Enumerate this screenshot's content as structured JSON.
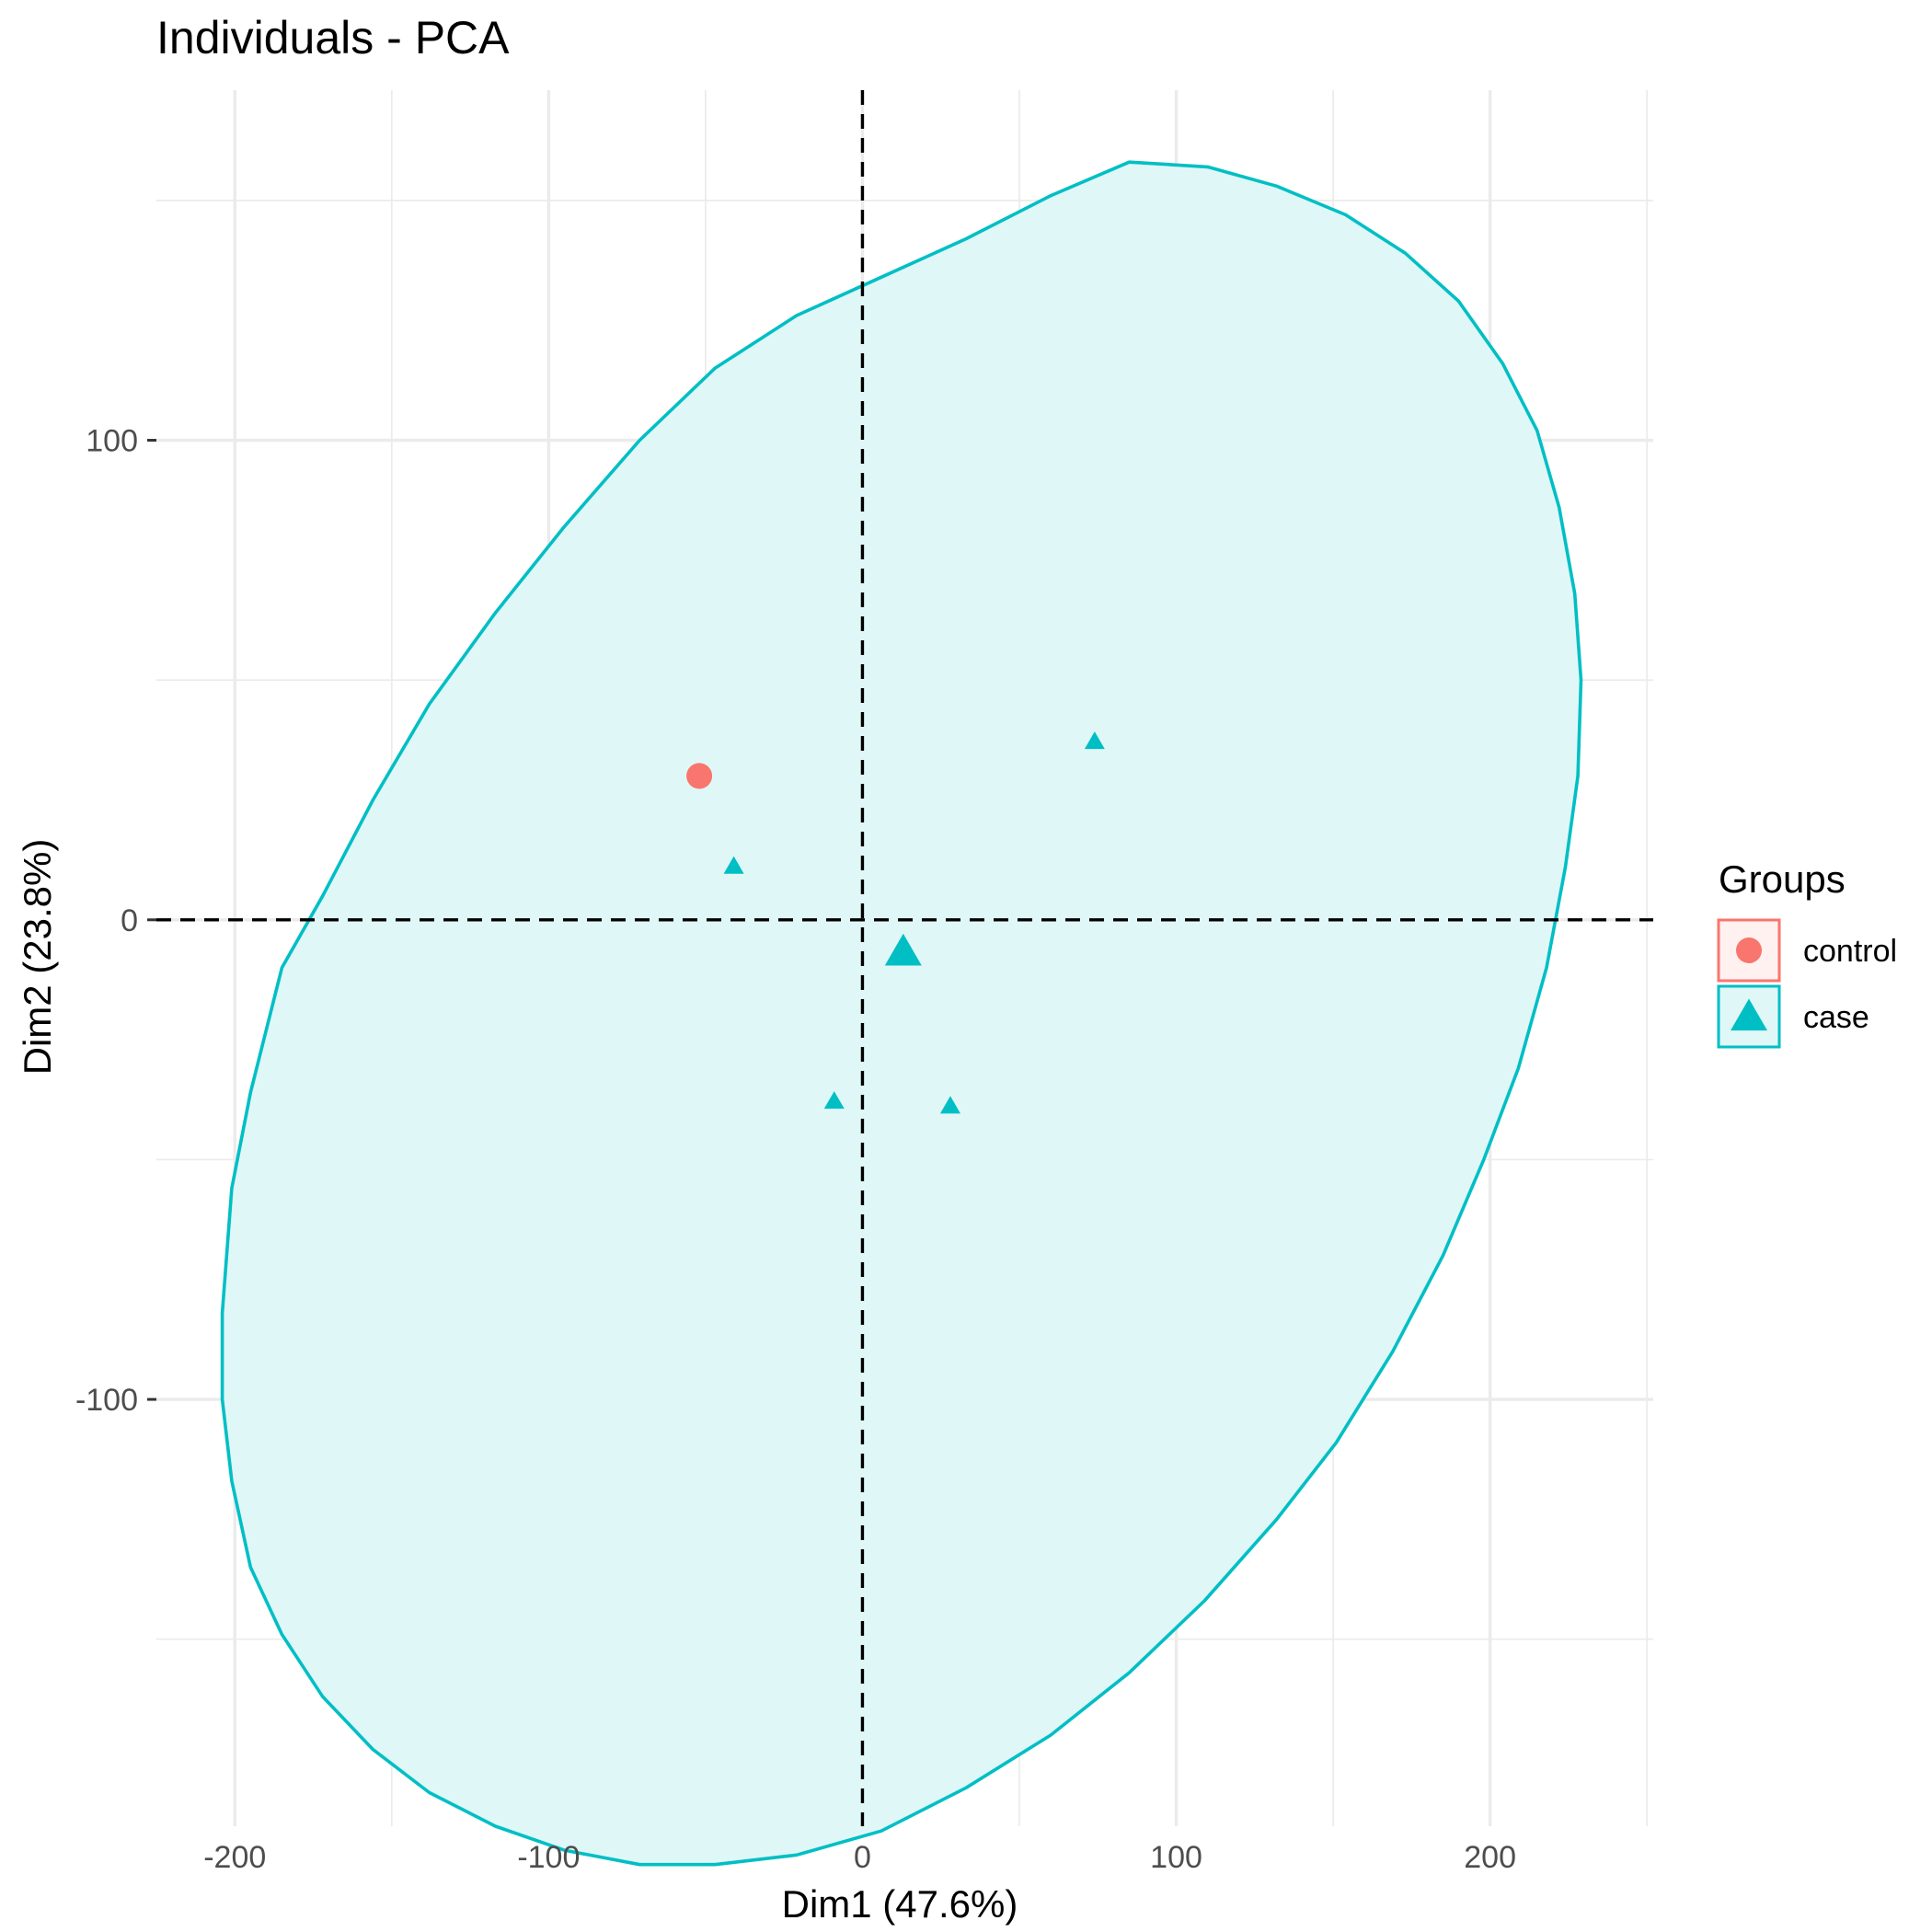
{
  "chart_data": {
    "type": "scatter",
    "title": "Individuals - PCA",
    "xlabel": "Dim1 (47.6%)",
    "ylabel": "Dim2 (23.8%)",
    "xlim": [
      -225,
      252
    ],
    "ylim": [
      -189,
      173
    ],
    "x_ticks": [
      -200,
      -100,
      0,
      100,
      200
    ],
    "y_ticks": [
      -100,
      0,
      100
    ],
    "x_tick_labels": [
      "-200",
      "-100",
      "0",
      "100",
      "200"
    ],
    "y_tick_labels": [
      "-100",
      "0",
      "100"
    ],
    "grid": true,
    "reference_lines": {
      "x": 0,
      "y": 0,
      "style": "dashed"
    },
    "legend": {
      "title": "Groups",
      "position": "right",
      "entries": [
        {
          "name": "control",
          "shape": "circle",
          "color": "#F8766D"
        },
        {
          "name": "case",
          "shape": "triangle",
          "color": "#00BFC4"
        }
      ]
    },
    "series": [
      {
        "name": "control",
        "color": "#F8766D",
        "shape": "circle",
        "points": [
          {
            "x": -52,
            "y": 30
          }
        ],
        "centroid": {
          "x": -52,
          "y": 30
        }
      },
      {
        "name": "case",
        "color": "#00BFC4",
        "shape": "triangle",
        "points": [
          {
            "x": 74,
            "y": 37
          },
          {
            "x": -41,
            "y": 11
          },
          {
            "x": -9,
            "y": -38
          },
          {
            "x": 28,
            "y": -39
          }
        ],
        "centroid": {
          "x": 13,
          "y": -7
        },
        "ellipse": {
          "fill": "#E0F7F8",
          "stroke": "#00BFC4",
          "points": [
            [
              85,
              158
            ],
            [
              110,
              157
            ],
            [
              132,
              153
            ],
            [
              154,
              147
            ],
            [
              173,
              139
            ],
            [
              190,
              129
            ],
            [
              204,
              116
            ],
            [
              215,
              102
            ],
            [
              222,
              86
            ],
            [
              227,
              68
            ],
            [
              229,
              50
            ],
            [
              228,
              30
            ],
            [
              224,
              11
            ],
            [
              218,
              -10
            ],
            [
              209,
              -31
            ],
            [
              198,
              -50
            ],
            [
              185,
              -70
            ],
            [
              169,
              -90
            ],
            [
              151,
              -109
            ],
            [
              132,
              -125
            ],
            [
              109,
              -142
            ],
            [
              85,
              -157
            ],
            [
              60,
              -170
            ],
            [
              33,
              -181
            ],
            [
              6,
              -190
            ],
            [
              -21,
              -195
            ],
            [
              -47,
              -197
            ],
            [
              -71,
              -197
            ],
            [
              -95,
              -194
            ],
            [
              -117,
              -189
            ],
            [
              -138,
              -182
            ],
            [
              -156,
              -173
            ],
            [
              -172,
              -162
            ],
            [
              -185,
              -149
            ],
            [
              -195,
              -135
            ],
            [
              -201,
              -117
            ],
            [
              -204,
              -100
            ],
            [
              -204,
              -82
            ],
            [
              -201,
              -56
            ],
            [
              -195,
              -36
            ],
            [
              -185,
              -10
            ],
            [
              -172,
              5
            ],
            [
              -156,
              25
            ],
            [
              -138,
              45
            ],
            [
              -117,
              64
            ],
            [
              -95,
              82
            ],
            [
              -71,
              100
            ],
            [
              -47,
              115
            ],
            [
              -21,
              126
            ],
            [
              6,
              134
            ],
            [
              33,
              142
            ],
            [
              60,
              151
            ]
          ]
        }
      }
    ]
  }
}
